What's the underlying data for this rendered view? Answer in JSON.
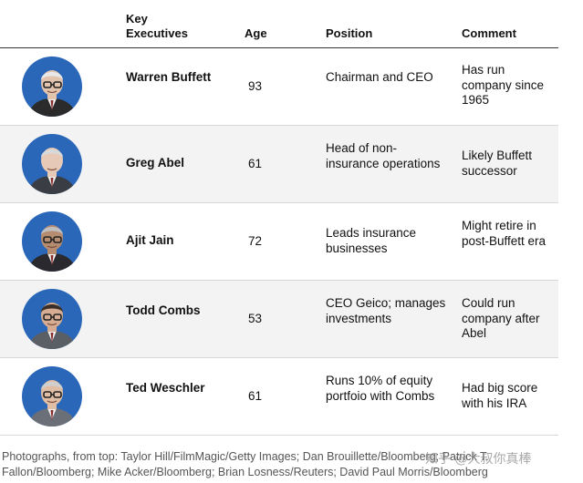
{
  "header": {
    "name_label": "Key Executives",
    "age_label": "Age",
    "position_label": "Position",
    "comment_label": "Comment"
  },
  "executives": [
    {
      "name": "Warren Buffett",
      "age": "93",
      "position": "Chairman and CEO",
      "comment": "Has run company since 1965",
      "colors": {
        "hair": "#e8e8e8",
        "skin": "#e2c3ae",
        "suit": "#2b2b2b",
        "glasses": true
      }
    },
    {
      "name": "Greg Abel",
      "age": "61",
      "position": "Head of non-insurance operations",
      "comment": "Likely Buffett successor",
      "colors": {
        "hair": "#d9d9d9",
        "skin": "#e6c9b6",
        "suit": "#3a3d44",
        "glasses": false
      }
    },
    {
      "name": "Ajit Jain",
      "age": "72",
      "position": "Leads insurance businesses",
      "comment": "Might retire in post-Buffett era",
      "colors": {
        "hair": "#bfbfbf",
        "skin": "#b58c70",
        "suit": "#2a2a2e",
        "glasses": true
      }
    },
    {
      "name": "Todd Combs",
      "age": "53",
      "position": "CEO Geico; manages investments",
      "comment": "Could run company after Abel",
      "colors": {
        "hair": "#3a2f28",
        "skin": "#d6ad92",
        "suit": "#5a5f66",
        "glasses": true
      }
    },
    {
      "name": "Ted Weschler",
      "age": "61",
      "position": "Runs 10% of equity portfoio with Combs",
      "comment": "Had big score with his IRA",
      "colors": {
        "hair": "#cfcfcf",
        "skin": "#e0bea6",
        "suit": "#6b7078",
        "glasses": true
      }
    }
  ],
  "credits": "Photographs, from top: Taylor Hill/FilmMagic/Getty Images; Dan Brouillette/Bloomberg; Patrick T. Fallon/Bloomberg; Mike Acker/Bloomberg; Brian Losness/Reuters; David Paul Morris/Bloomberg",
  "watermark": "知乎 @大叔你真棒",
  "theme": {
    "avatar_bg": "#2a67b9",
    "row_shade": "#f3f3f3"
  }
}
